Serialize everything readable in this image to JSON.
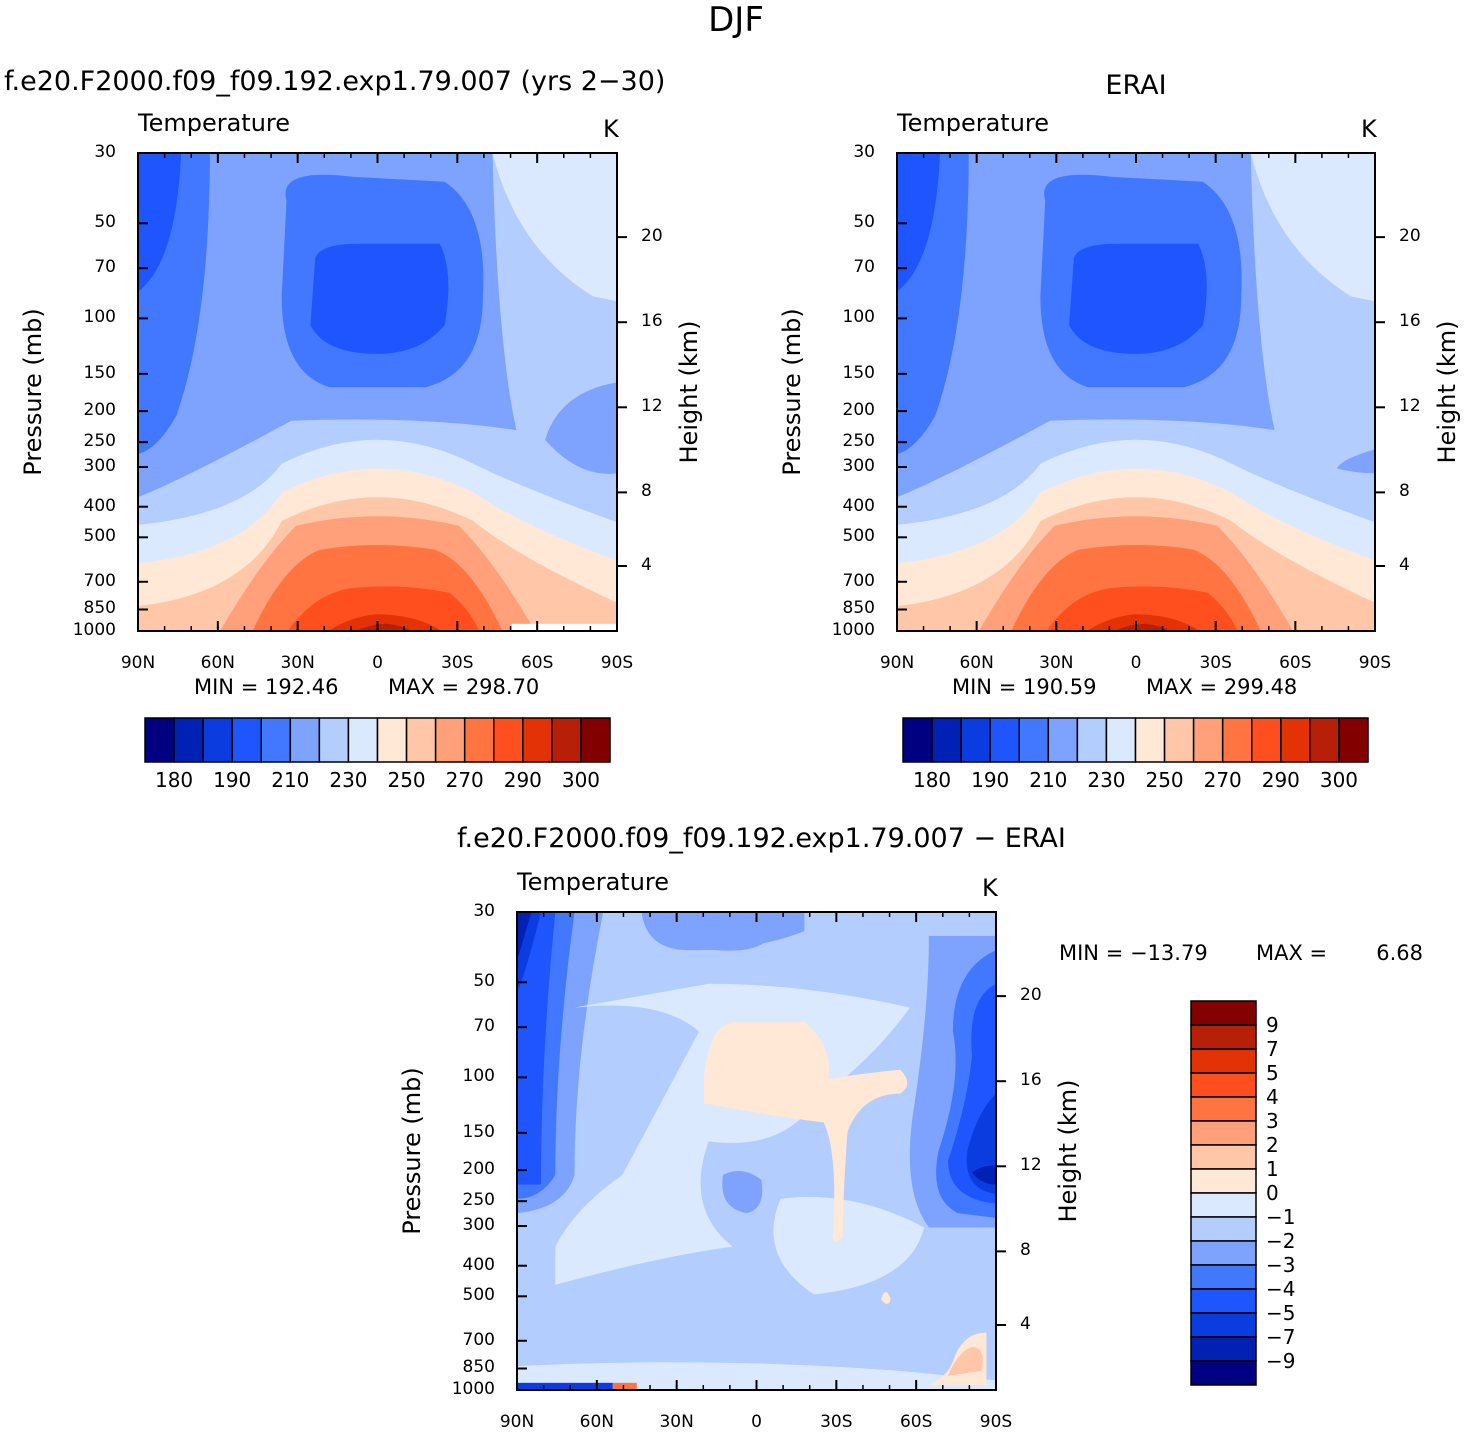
{
  "title": "DJF",
  "common": {
    "var_label": "Temperature",
    "units": "K",
    "ylabel": "Pressure (mb)",
    "y2label": "Height (km)",
    "xticks": [
      "90N",
      "60N",
      "30N",
      "0",
      "30S",
      "60S",
      "90S"
    ],
    "pressure_ticks": [
      "30",
      "50",
      "70",
      "100",
      "150",
      "200",
      "250",
      "300",
      "400",
      "500",
      "700",
      "850",
      "1000"
    ],
    "height_ticks": [
      "20",
      "16",
      "12",
      "8",
      "4"
    ]
  },
  "panels": [
    {
      "title": "f.e20.F2000.f09_f09.192.exp1.79.007 (yrs 2−30)",
      "min_label": "MIN =",
      "min_value": "192.46",
      "max_label": "MAX =",
      "max_value": "298.70"
    },
    {
      "title": "ERAI",
      "min_label": "MIN =",
      "min_value": "190.59",
      "max_label": "MAX =",
      "max_value": "299.48"
    },
    {
      "title": "f.e20.F2000.f09_f09.192.exp1.79.007 − ERAI",
      "min_label": "MIN =",
      "min_value": "−13.79",
      "max_label": "MAX =",
      "max_value": "6.68"
    }
  ],
  "colorbar_abs": {
    "colors": [
      "#000080",
      "#0021b3",
      "#0a3ce0",
      "#1e55ff",
      "#4277ff",
      "#7da3ff",
      "#b3cdff",
      "#dbe9ff",
      "#ffe8d6",
      "#ffc7a8",
      "#ffa07a",
      "#ff7440",
      "#ff4f1f",
      "#e33206",
      "#b81f08",
      "#820000"
    ],
    "labels": [
      "180",
      "190",
      "210",
      "230",
      "250",
      "270",
      "290",
      "300"
    ]
  },
  "colorbar_diff": {
    "colors": [
      "#820000",
      "#b81f08",
      "#e33206",
      "#ff4f1f",
      "#ff7440",
      "#ffa07a",
      "#ffc7a8",
      "#ffe8d6",
      "#dbe9ff",
      "#b3cdff",
      "#7da3ff",
      "#4277ff",
      "#1e55ff",
      "#0a3ce0",
      "#0021b3",
      "#000080"
    ],
    "labels": [
      "9",
      "7",
      "5",
      "4",
      "3",
      "2",
      "1",
      "0",
      "−1",
      "−2",
      "−3",
      "−4",
      "−5",
      "−7",
      "−9"
    ]
  },
  "chart_data": [
    {
      "type": "heatmap",
      "title": "f.e20.F2000.f09_f09.192.exp1.79.007 (yrs 2−30)",
      "variable": "Temperature",
      "units": "K",
      "xlabel": "",
      "ylabel": "Pressure (mb)",
      "y2label": "Height (km)",
      "x": [
        "90N",
        "60N",
        "30N",
        "0",
        "30S",
        "60S",
        "90S"
      ],
      "y_pressure": [
        30,
        50,
        70,
        100,
        150,
        200,
        250,
        300,
        400,
        500,
        700,
        850,
        1000
      ],
      "contour_levels": [
        175,
        180,
        185,
        190,
        200,
        210,
        220,
        230,
        240,
        250,
        260,
        270,
        280,
        290,
        295,
        300
      ],
      "min": 192.46,
      "max": 298.7
    },
    {
      "type": "heatmap",
      "title": "ERAI",
      "variable": "Temperature",
      "units": "K",
      "xlabel": "",
      "ylabel": "Pressure (mb)",
      "y2label": "Height (km)",
      "x": [
        "90N",
        "60N",
        "30N",
        "0",
        "30S",
        "60S",
        "90S"
      ],
      "y_pressure": [
        30,
        50,
        70,
        100,
        150,
        200,
        250,
        300,
        400,
        500,
        700,
        850,
        1000
      ],
      "contour_levels": [
        175,
        180,
        185,
        190,
        200,
        210,
        220,
        230,
        240,
        250,
        260,
        270,
        280,
        290,
        295,
        300
      ],
      "min": 190.59,
      "max": 299.48
    },
    {
      "type": "heatmap",
      "title": "f.e20.F2000.f09_f09.192.exp1.79.007 − ERAI",
      "variable": "Temperature",
      "units": "K",
      "xlabel": "",
      "ylabel": "Pressure (mb)",
      "y2label": "Height (km)",
      "x": [
        "90N",
        "60N",
        "30N",
        "0",
        "30S",
        "60S",
        "90S"
      ],
      "y_pressure": [
        30,
        50,
        70,
        100,
        150,
        200,
        250,
        300,
        400,
        500,
        700,
        850,
        1000
      ],
      "contour_levels": [
        -9,
        -7,
        -5,
        -4,
        -3,
        -2,
        -1,
        0,
        1,
        2,
        3,
        4,
        5,
        7,
        9
      ],
      "min": -13.79,
      "max": 6.68
    }
  ]
}
